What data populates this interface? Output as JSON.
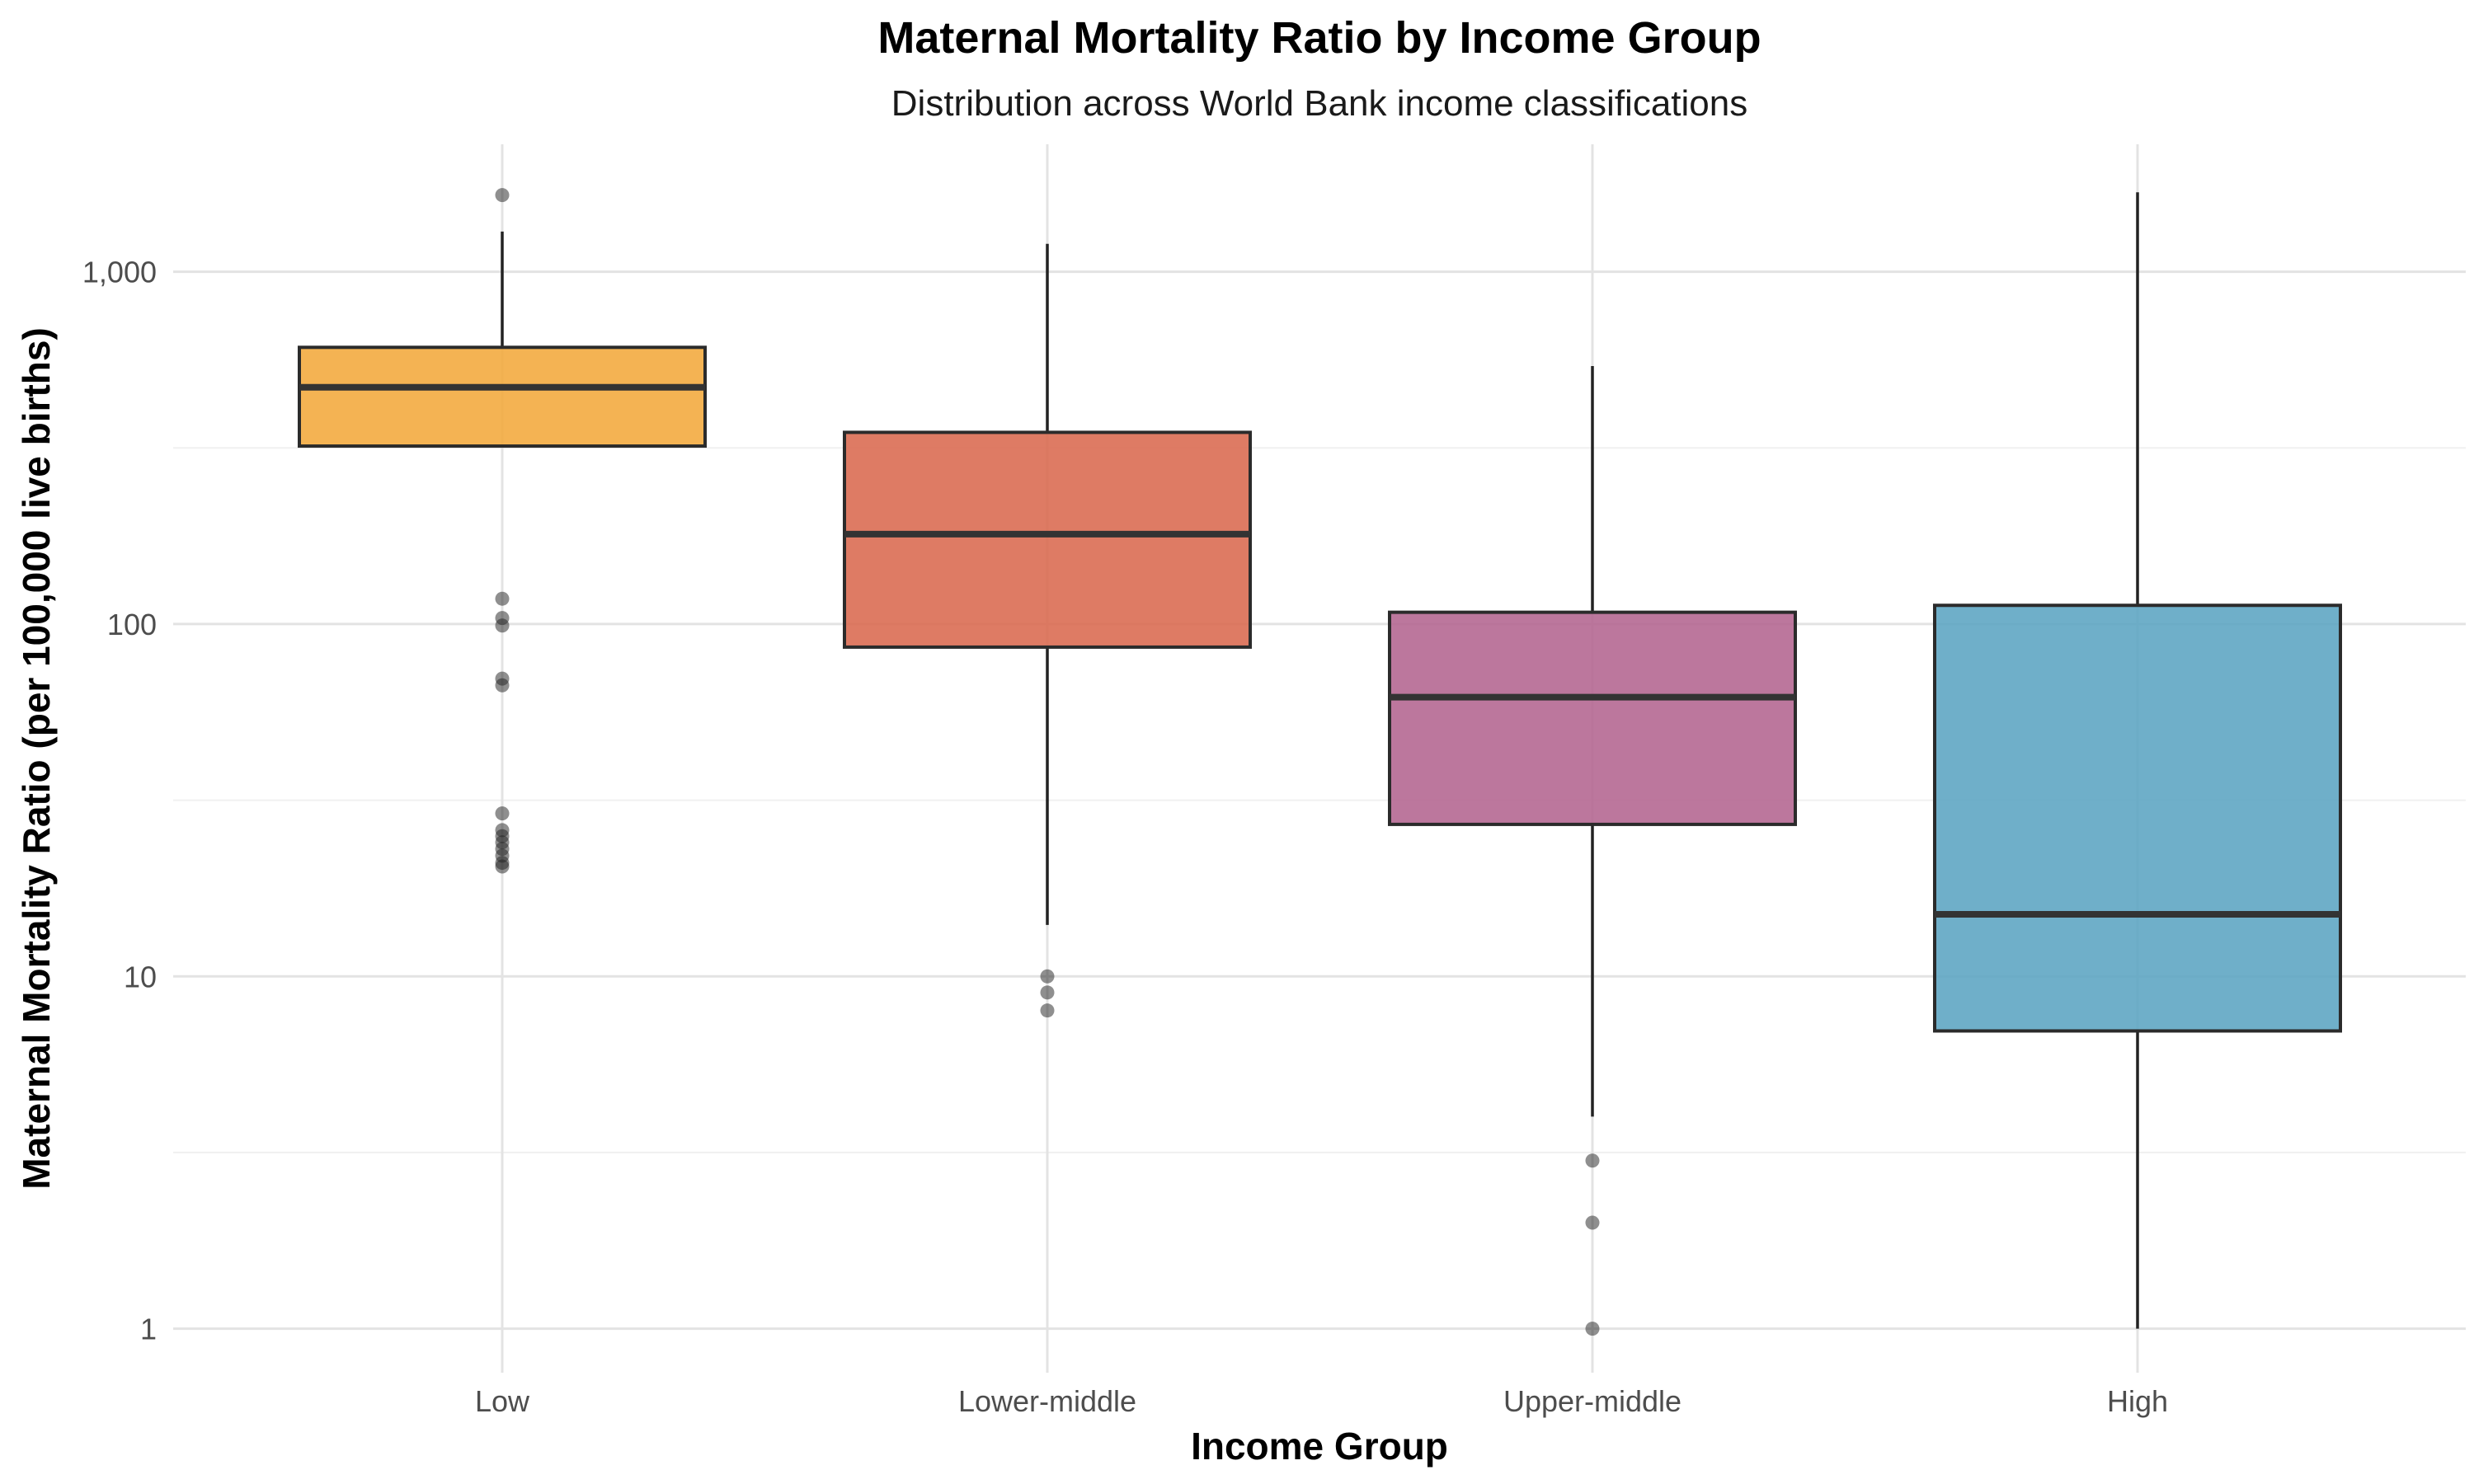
{
  "chart_data": {
    "type": "box",
    "title": "Maternal Mortality Ratio by Income Group",
    "subtitle": "Distribution across World Bank income classifications",
    "xlabel": "Income Group",
    "ylabel": "Maternal Mortality Ratio (per 100,000 live births)",
    "y_scale": "log10",
    "ylim": [
      0.75,
      2300
    ],
    "y_ticks": [
      {
        "value": 1,
        "label": "1"
      },
      {
        "value": 10,
        "label": "10"
      },
      {
        "value": 100,
        "label": "100"
      },
      {
        "value": 1000,
        "label": "1,000"
      }
    ],
    "grid": true,
    "legend": "none",
    "categories": [
      "Low",
      "Lower-middle",
      "Upper-middle",
      "High"
    ],
    "boxes": [
      {
        "category": "Low",
        "color": "#F2A93B",
        "whisker_low": 320,
        "q1": 320,
        "median": 470,
        "q3": 610,
        "whisker_high": 1300,
        "outliers": [
          1650,
          118,
          104,
          99,
          70,
          67,
          29,
          26,
          25,
          24,
          23,
          22,
          21,
          20.5
        ]
      },
      {
        "category": "Lower-middle",
        "color": "#D9694E",
        "whisker_low": 14,
        "q1": 86,
        "median": 180,
        "q3": 350,
        "whisker_high": 1200,
        "outliers": [
          10,
          9,
          8
        ]
      },
      {
        "category": "Upper-middle",
        "color": "#B3648F",
        "whisker_low": 4,
        "q1": 27,
        "median": 62,
        "q3": 108,
        "whisker_high": 540,
        "outliers": [
          3,
          2,
          1
        ]
      },
      {
        "category": "High",
        "color": "#5BA4C1",
        "whisker_low": 1,
        "q1": 7,
        "median": 15,
        "q3": 113,
        "whisker_high": 1680,
        "outliers": []
      }
    ]
  }
}
